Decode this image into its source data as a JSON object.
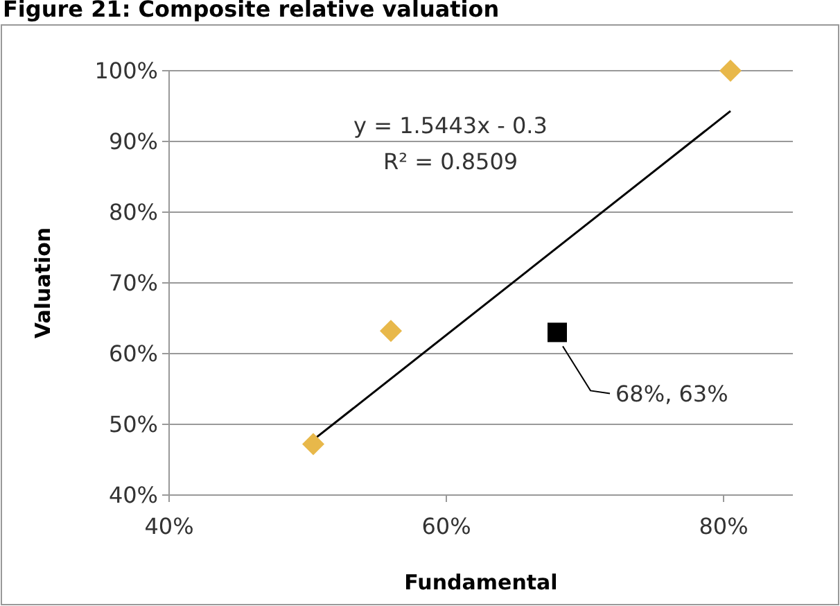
{
  "chart_data": {
    "type": "scatter",
    "title": "Figure 21: Composite relative valuation",
    "xlabel": "Fundamental",
    "ylabel": "Valuation",
    "xlim": [
      40,
      85
    ],
    "xticks": [
      {
        "value": 40,
        "label": "40%"
      },
      {
        "value": 60,
        "label": "60%"
      },
      {
        "value": 80,
        "label": "80%"
      }
    ],
    "ylim": [
      40,
      100
    ],
    "yticks": [
      {
        "value": 40,
        "label": "40%"
      },
      {
        "value": 50,
        "label": "50%"
      },
      {
        "value": 60,
        "label": "60%"
      },
      {
        "value": 70,
        "label": "70%"
      },
      {
        "value": 80,
        "label": "80%"
      },
      {
        "value": 90,
        "label": "90%"
      },
      {
        "value": 100,
        "label": "100%"
      }
    ],
    "grid": "y",
    "series": [
      {
        "color": "#e8b84a",
        "marker": "diamond",
        "x": [
          50.4,
          56.0,
          80.5
        ],
        "values": [
          47.2,
          63.2,
          100
        ]
      },
      {
        "color": "#000000",
        "marker": "square",
        "x": [
          68
        ],
        "values": [
          63
        ]
      },
      {
        "type": "line",
        "color": "#000000",
        "x": [
          50.4,
          80.5
        ],
        "values": [
          47.8,
          94.3
        ]
      }
    ],
    "annotations": [
      "y = 1.5443x - 0.3",
      "R² = 0.8509",
      "68%, 63%"
    ]
  }
}
